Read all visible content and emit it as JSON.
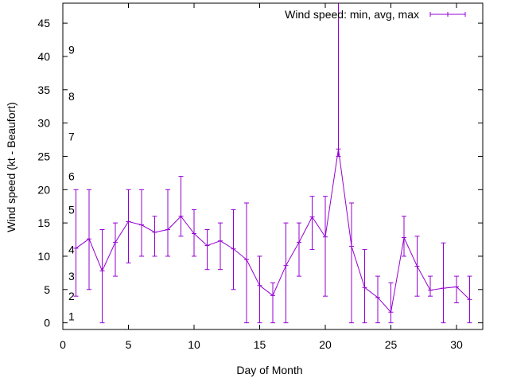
{
  "chart_data": {
    "type": "line",
    "title": "",
    "xlabel": "Day of Month",
    "ylabel": "Wind speed (kt - Beaufort)",
    "xlim": [
      0,
      32
    ],
    "ylim": [
      -1,
      48
    ],
    "x_ticks": [
      0,
      5,
      10,
      15,
      20,
      25,
      30
    ],
    "y_ticks": [
      0,
      5,
      10,
      15,
      20,
      25,
      30,
      35,
      40,
      45
    ],
    "legend_position": "top-right",
    "series": [
      {
        "name": "Wind speed: min, avg, max",
        "color": "#9400d3",
        "x": [
          1,
          2,
          3,
          4,
          5,
          6,
          7,
          8,
          9,
          10,
          11,
          12,
          13,
          14,
          15,
          16,
          17,
          18,
          19,
          20,
          21,
          22,
          23,
          24,
          25,
          26,
          27,
          28,
          29,
          30,
          31
        ],
        "avg": [
          11.2,
          12.6,
          7.8,
          12.1,
          15.2,
          14.7,
          13.6,
          14.0,
          16.0,
          13.4,
          11.6,
          12.3,
          11.1,
          9.5,
          5.6,
          4.1,
          8.6,
          12.1,
          15.9,
          12.9,
          26.1,
          11.5,
          5.3,
          3.8,
          1.6,
          12.8,
          8.5,
          4.9,
          5.2,
          5.4,
          3.5
        ],
        "min": [
          4,
          5,
          0,
          7,
          9,
          10,
          10,
          10,
          13,
          10,
          8,
          8,
          5,
          0,
          0,
          0,
          0,
          7,
          11,
          4,
          25,
          0,
          0,
          0,
          0,
          10,
          4,
          4,
          0,
          3,
          0
        ],
        "max": [
          20,
          20,
          14,
          15,
          20,
          20,
          16,
          20,
          22,
          17,
          14,
          15,
          17,
          18,
          10,
          6,
          15,
          15,
          19,
          19,
          48,
          18,
          11,
          7,
          6,
          16,
          13,
          7,
          12,
          7,
          7
        ]
      }
    ],
    "beaufort_labels": [
      {
        "label": "1",
        "value": 1
      },
      {
        "label": "2",
        "value": 4
      },
      {
        "label": "3",
        "value": 7
      },
      {
        "label": "4",
        "value": 11
      },
      {
        "label": "5",
        "value": 17
      },
      {
        "label": "6",
        "value": 22
      },
      {
        "label": "7",
        "value": 28
      },
      {
        "label": "8",
        "value": 34
      },
      {
        "label": "9",
        "value": 41
      }
    ]
  }
}
